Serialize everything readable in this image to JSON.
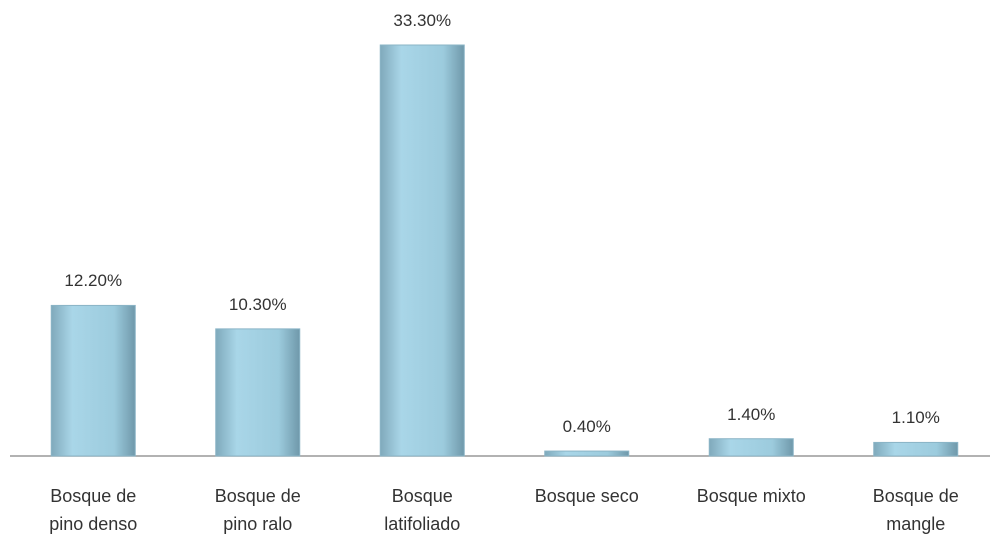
{
  "chart_data": {
    "type": "bar",
    "categories": [
      "Bosque de\npino denso",
      "Bosque de\npino ralo",
      "Bosque\nlatifoliado",
      "Bosque seco",
      "Bosque mixto",
      "Bosque de\nmangle"
    ],
    "values": [
      12.2,
      10.3,
      33.3,
      0.4,
      1.4,
      1.1
    ],
    "value_labels": [
      "12.20%",
      "10.30%",
      "33.30%",
      "0.40%",
      "1.40%",
      "1.10%"
    ],
    "color": "#9ccbdd"
  }
}
